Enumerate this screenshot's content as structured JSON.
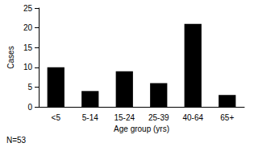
{
  "chart_data": {
    "type": "bar",
    "xlabel": "Age group (yrs)",
    "ylabel": "Cases",
    "annotations": [
      "N=53"
    ],
    "categories": [
      "<5",
      "5-14",
      "15-24",
      "25-39",
      "40-64",
      "65+"
    ],
    "values": [
      10,
      4,
      9,
      6,
      21,
      3
    ],
    "color": "#000000",
    "ylim": [
      0,
      25
    ],
    "yticks": [
      0,
      5,
      10,
      15,
      20,
      25
    ],
    "grid": false
  }
}
